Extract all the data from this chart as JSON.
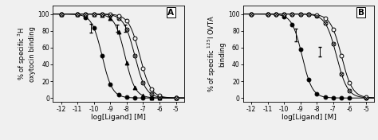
{
  "panel_A": {
    "title": "A",
    "ylabel": "% of specific $^{3}$H\noxytocin binding",
    "xlabel": "log[Ligand] [M]",
    "xlim": [
      -12.5,
      -4.5
    ],
    "xticks": [
      -12,
      -11,
      -10,
      -9,
      -8,
      -7,
      -6,
      -5
    ],
    "ylim": [
      -5,
      110
    ],
    "yticks": [
      0,
      20,
      40,
      60,
      80,
      100
    ],
    "curves": [
      {
        "marker": "o",
        "filled": true,
        "logEC50": -9.5,
        "hill": 1.4,
        "xpts": [
          -12,
          -11,
          -10.5,
          -10,
          -9.5,
          -9,
          -8.5,
          -8,
          -7.5,
          -7,
          -6.5,
          -6,
          -5
        ],
        "err_x": -10.2,
        "err_y": 83,
        "err_val": 5
      },
      {
        "marker": "t",
        "filled": true,
        "logEC50": -8.1,
        "hill": 1.4,
        "xpts": [
          -12,
          -11,
          -10.5,
          -10,
          -9.5,
          -9,
          -8.5,
          -8,
          -7.5,
          -7,
          -6.5,
          -6,
          -5
        ],
        "err_x": -8.6,
        "err_y": 83,
        "err_val": 4
      },
      {
        "marker": "ox",
        "filled": false,
        "logEC50": -7.5,
        "hill": 1.3,
        "xpts": [
          -12,
          -11,
          -10.5,
          -10,
          -9.5,
          -9,
          -8.5,
          -8,
          -7.5,
          -7,
          -6.5,
          -6,
          -5
        ],
        "err_x": -8.1,
        "err_y": 83,
        "err_val": 4
      },
      {
        "marker": "o",
        "filled": false,
        "logEC50": -7.2,
        "hill": 1.3,
        "xpts": [
          -12,
          -11,
          -10.5,
          -10,
          -9.5,
          -9,
          -8.5,
          -8,
          -7.5,
          -7,
          -6.5,
          -6,
          -5
        ],
        "err_x": null,
        "err_y": null,
        "err_val": null
      }
    ]
  },
  "panel_B": {
    "title": "B",
    "ylabel": "% of specific $^{125}$I OVTA\nbinding",
    "xlabel": "log[Ligand] [M]",
    "xlim": [
      -12.5,
      -4.5
    ],
    "xticks": [
      -12,
      -11,
      -10,
      -9,
      -8,
      -7,
      -6,
      -5
    ],
    "ylim": [
      -5,
      110
    ],
    "yticks": [
      0,
      20,
      40,
      60,
      80,
      100
    ],
    "curves": [
      {
        "marker": "o",
        "filled": true,
        "logEC50": -8.9,
        "hill": 1.4,
        "xpts": [
          -12,
          -11,
          -10.5,
          -10,
          -9.5,
          -9,
          -8.5,
          -8,
          -7.5,
          -7,
          -6.5,
          -6,
          -5
        ],
        "err_x": -9.3,
        "err_y": 75,
        "err_val": 8
      },
      {
        "marker": "ox",
        "filled": false,
        "logEC50": -6.8,
        "hill": 1.3,
        "xpts": [
          -12,
          -11,
          -10.5,
          -10,
          -9.5,
          -9,
          -8.5,
          -8,
          -7.5,
          -7,
          -6.5,
          -6,
          -5
        ],
        "err_x": -7.8,
        "err_y": 55,
        "err_val": 6
      },
      {
        "marker": "o",
        "filled": false,
        "logEC50": -6.5,
        "hill": 1.3,
        "xpts": [
          -12,
          -11,
          -10.5,
          -10,
          -9.5,
          -9,
          -8.5,
          -8,
          -7.5,
          -7,
          -6.5,
          -6,
          -5
        ],
        "err_x": null,
        "err_y": null,
        "err_val": null
      }
    ]
  },
  "bg_color": "#f0f0f0",
  "fontsize": 6.5
}
